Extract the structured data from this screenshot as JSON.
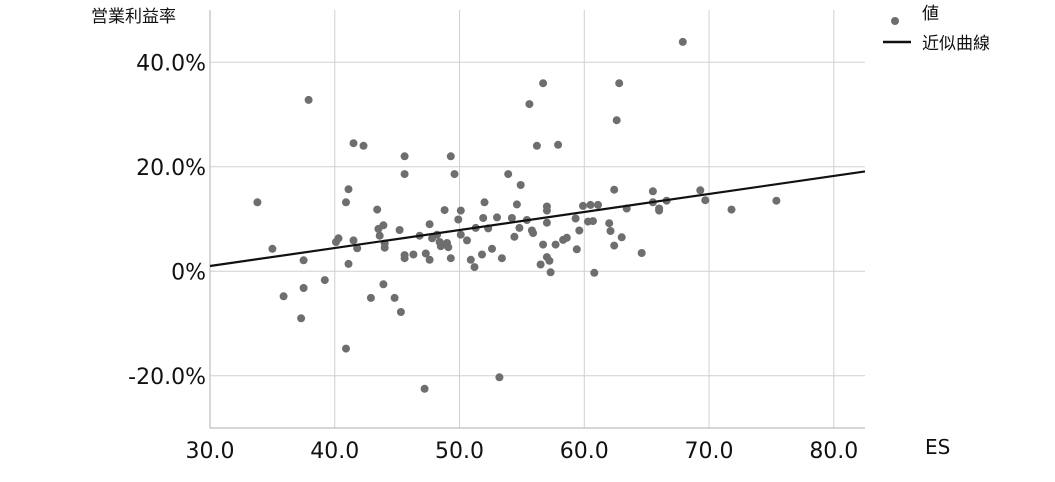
{
  "chart_data": {
    "type": "scatter",
    "title": "",
    "xlabel": "ES",
    "ylabel": "営業利益率",
    "xlim": [
      30.0,
      82.5
    ],
    "ylim": [
      -30.0,
      50.0
    ],
    "x_ticks": [
      30,
      40,
      50,
      60,
      70,
      80
    ],
    "x_tick_labels": [
      "30.0",
      "40.0",
      "50.0",
      "60.0",
      "70.0",
      "80.0"
    ],
    "y_ticks": [
      -20,
      0,
      20,
      40
    ],
    "y_tick_labels": [
      "-20.0%",
      "0%",
      "20.0%",
      "40.0%"
    ],
    "grid": true,
    "legend_position": "top-right",
    "colors": {
      "points": "#6e6e6e",
      "fit_line": "#111111"
    },
    "series": [
      {
        "name": "値",
        "type": "scatter",
        "points": [
          [
            33.8,
            13.2
          ],
          [
            35.0,
            4.3
          ],
          [
            35.9,
            -4.8
          ],
          [
            37.3,
            -9.0
          ],
          [
            37.5,
            2.1
          ],
          [
            37.5,
            -3.2
          ],
          [
            37.9,
            32.8
          ],
          [
            39.2,
            -1.7
          ],
          [
            40.1,
            5.6
          ],
          [
            40.3,
            6.3
          ],
          [
            40.9,
            -14.8
          ],
          [
            40.9,
            13.2
          ],
          [
            41.1,
            15.7
          ],
          [
            41.1,
            1.4
          ],
          [
            41.5,
            24.5
          ],
          [
            41.5,
            5.9
          ],
          [
            41.8,
            4.4
          ],
          [
            42.3,
            24.0
          ],
          [
            42.9,
            -5.1
          ],
          [
            43.4,
            11.8
          ],
          [
            43.5,
            8.1
          ],
          [
            43.6,
            6.8
          ],
          [
            43.9,
            8.8
          ],
          [
            43.9,
            -2.5
          ],
          [
            44.0,
            5.3
          ],
          [
            44.0,
            4.5
          ],
          [
            44.8,
            -5.1
          ],
          [
            45.2,
            7.9
          ],
          [
            45.3,
            -7.8
          ],
          [
            45.6,
            22.0
          ],
          [
            45.6,
            18.6
          ],
          [
            45.6,
            3.1
          ],
          [
            45.6,
            2.5
          ],
          [
            46.3,
            3.2
          ],
          [
            46.8,
            6.8
          ],
          [
            47.2,
            -22.5
          ],
          [
            47.3,
            3.4
          ],
          [
            47.6,
            2.2
          ],
          [
            47.6,
            9.0
          ],
          [
            47.8,
            6.3
          ],
          [
            48.2,
            7.0
          ],
          [
            48.4,
            5.6
          ],
          [
            48.5,
            4.8
          ],
          [
            48.8,
            11.7
          ],
          [
            49.0,
            5.4
          ],
          [
            49.1,
            4.6
          ],
          [
            49.3,
            22.0
          ],
          [
            49.3,
            2.5
          ],
          [
            49.6,
            18.6
          ],
          [
            49.9,
            9.9
          ],
          [
            50.1,
            11.6
          ],
          [
            50.1,
            7.0
          ],
          [
            50.6,
            5.9
          ],
          [
            50.9,
            2.2
          ],
          [
            51.2,
            0.8
          ],
          [
            51.3,
            8.3
          ],
          [
            51.8,
            3.2
          ],
          [
            51.9,
            10.2
          ],
          [
            52.0,
            13.2
          ],
          [
            52.3,
            8.2
          ],
          [
            52.6,
            4.3
          ],
          [
            53.0,
            10.3
          ],
          [
            53.2,
            -20.3
          ],
          [
            53.4,
            2.5
          ],
          [
            53.9,
            18.6
          ],
          [
            54.2,
            10.2
          ],
          [
            54.4,
            6.6
          ],
          [
            54.6,
            12.8
          ],
          [
            54.8,
            8.3
          ],
          [
            54.9,
            16.5
          ],
          [
            55.4,
            9.8
          ],
          [
            55.6,
            32.0
          ],
          [
            55.8,
            7.8
          ],
          [
            55.9,
            7.3
          ],
          [
            56.2,
            24.0
          ],
          [
            56.5,
            1.3
          ],
          [
            56.7,
            36.0
          ],
          [
            56.7,
            5.1
          ],
          [
            57.0,
            12.4
          ],
          [
            57.0,
            11.6
          ],
          [
            57.0,
            9.3
          ],
          [
            57.0,
            2.7
          ],
          [
            57.2,
            2.0
          ],
          [
            57.3,
            -0.2
          ],
          [
            57.7,
            5.1
          ],
          [
            57.9,
            24.2
          ],
          [
            58.3,
            6.0
          ],
          [
            58.6,
            6.4
          ],
          [
            59.3,
            10.1
          ],
          [
            59.4,
            4.2
          ],
          [
            59.6,
            7.8
          ],
          [
            59.9,
            12.5
          ],
          [
            60.3,
            9.5
          ],
          [
            60.5,
            12.7
          ],
          [
            60.7,
            9.6
          ],
          [
            60.8,
            -0.3
          ],
          [
            61.1,
            12.7
          ],
          [
            62.0,
            9.2
          ],
          [
            62.1,
            7.7
          ],
          [
            62.4,
            15.6
          ],
          [
            62.4,
            4.9
          ],
          [
            62.6,
            28.9
          ],
          [
            62.8,
            36.0
          ],
          [
            63.0,
            6.5
          ],
          [
            63.4,
            12.0
          ],
          [
            64.6,
            3.5
          ],
          [
            65.5,
            13.2
          ],
          [
            65.5,
            15.3
          ],
          [
            66.0,
            12.0
          ],
          [
            66.0,
            11.6
          ],
          [
            66.6,
            13.5
          ],
          [
            67.9,
            43.9
          ],
          [
            69.3,
            15.5
          ],
          [
            69.7,
            13.6
          ],
          [
            71.8,
            11.8
          ],
          [
            75.4,
            13.5
          ]
        ]
      },
      {
        "name": "近似曲線",
        "type": "line",
        "points": [
          [
            30.0,
            1.0
          ],
          [
            82.5,
            19.1
          ]
        ]
      }
    ]
  },
  "legend": {
    "items": [
      {
        "label": "値",
        "symbol": "circle"
      },
      {
        "label": "近似曲線",
        "symbol": "line"
      }
    ]
  }
}
